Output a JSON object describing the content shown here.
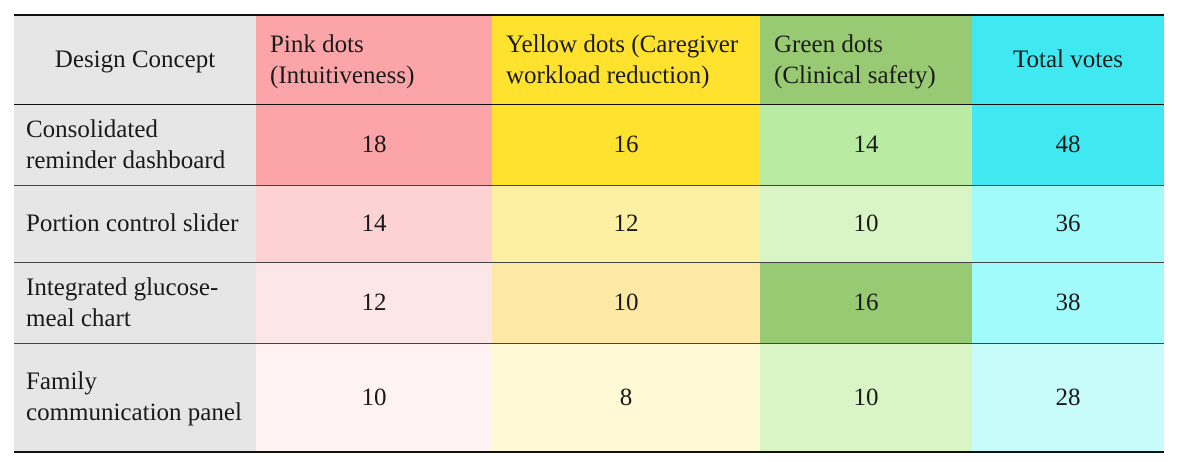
{
  "table": {
    "headers": {
      "concept": "Design Concept",
      "pink": "Pink dots (Intuitiveness)",
      "yellow": "Yellow dots (Caregiver workload reduction)",
      "green": "Green dots (Clinical safety)",
      "total": "Total votes"
    },
    "rows": [
      {
        "concept": "Consolidated reminder dashboard",
        "pink": "18",
        "yellow": "16",
        "green": "14",
        "total": "48"
      },
      {
        "concept": "Portion control slider",
        "pink": "14",
        "yellow": "12",
        "green": "10",
        "total": "36"
      },
      {
        "concept": "Integrated glucose-meal chart",
        "pink": "12",
        "yellow": "10",
        "green": "16",
        "total": "38"
      },
      {
        "concept": "Family communication panel",
        "pink": "10",
        "yellow": "8",
        "green": "10",
        "total": "28"
      }
    ]
  },
  "colors": {
    "header_concept": "#e6e6e6",
    "header_pink": "#fba5a9",
    "header_yellow": "#fee22d",
    "header_green": "#97ca72",
    "header_total": "#40e8f2",
    "pink_cells": [
      "#fba5a9",
      "#fdd2d5",
      "#fde6e8",
      "#fef2f3"
    ],
    "yellow_cells": [
      "#fee22d",
      "#fef0a2",
      "#fde8a6",
      "#fff9d5"
    ],
    "green_cells": [
      "#b9eca2",
      "#d9f5c6",
      "#97ca72",
      "#d9f5c6"
    ],
    "total_cells": [
      "#40e8f2",
      "#a2fbfb",
      "#a2fbfb",
      "#c7fcfb"
    ]
  }
}
